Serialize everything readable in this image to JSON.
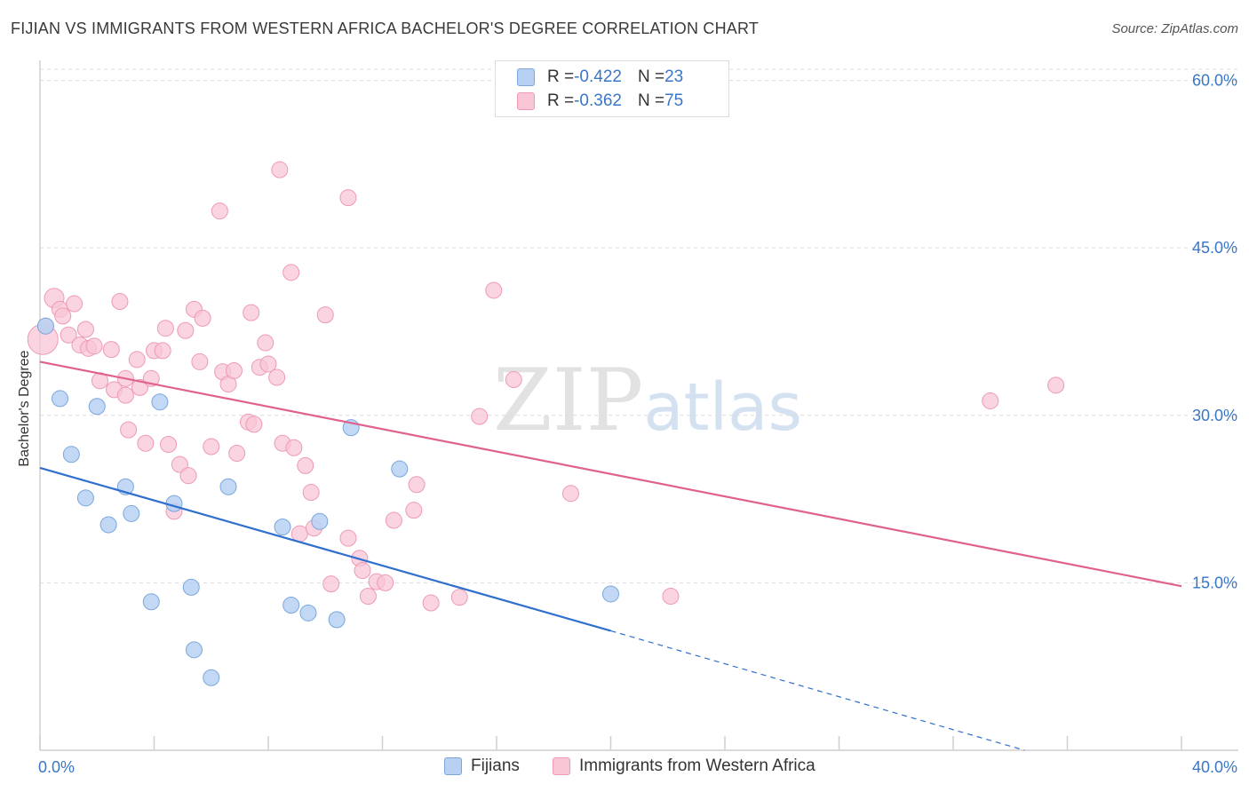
{
  "title": "FIJIAN VS IMMIGRANTS FROM WESTERN AFRICA BACHELOR'S DEGREE CORRELATION CHART",
  "source": "Source: ZipAtlas.com",
  "watermark": {
    "zip": "ZIP",
    "atlas": "atlas"
  },
  "legend_top": {
    "rows": [
      {
        "r_label": "R = ",
        "r_value": "-0.422",
        "n_label": "N = ",
        "n_value": "23"
      },
      {
        "r_label": "R = ",
        "r_value": "-0.362",
        "n_label": "N = ",
        "n_value": "75"
      }
    ]
  },
  "legend_bottom": {
    "series1": "Fijians",
    "series2": "Immigrants from Western Africa"
  },
  "colors": {
    "blue_fill": "#b8d1f3",
    "blue_stroke": "#7aa7dd",
    "blue_line": "#2f6fce",
    "pink_fill": "#f8c6d5",
    "pink_stroke": "#ee9ab5",
    "pink_line": "#e0628c",
    "tick_text": "#3a76c6",
    "grid": "#dcdcdc"
  },
  "chart_data": {
    "type": "scatter",
    "title": "FIJIAN VS IMMIGRANTS FROM WESTERN AFRICA BACHELOR'S DEGREE CORRELATION CHART",
    "xlabel": "",
    "ylabel": "Bachelor's Degree",
    "xlim": [
      0,
      40
    ],
    "ylim": [
      0,
      61
    ],
    "x_tick_labels": [
      "0.0%",
      "40.0%"
    ],
    "y_ticks": [
      15,
      30,
      45,
      60
    ],
    "y_tick_labels": [
      "15.0%",
      "30.0%",
      "45.0%",
      "60.0%"
    ],
    "grid": true,
    "legend_placement": "bottom",
    "series": [
      {
        "name": "Fijians",
        "color": "#b8d1f3",
        "points": [
          [
            0.2,
            38.0
          ],
          [
            0.7,
            31.5
          ],
          [
            1.1,
            26.5
          ],
          [
            1.6,
            22.6
          ],
          [
            2.0,
            30.8
          ],
          [
            2.4,
            20.2
          ],
          [
            3.0,
            23.6
          ],
          [
            3.2,
            21.2
          ],
          [
            3.9,
            13.3
          ],
          [
            4.2,
            31.2
          ],
          [
            4.7,
            22.1
          ],
          [
            5.3,
            14.6
          ],
          [
            5.4,
            9.0
          ],
          [
            6.0,
            6.5
          ],
          [
            6.6,
            23.6
          ],
          [
            8.5,
            20.0
          ],
          [
            8.8,
            13.0
          ],
          [
            9.4,
            12.3
          ],
          [
            9.8,
            20.5
          ],
          [
            10.4,
            11.7
          ],
          [
            10.9,
            28.9
          ],
          [
            12.6,
            25.2
          ],
          [
            20.0,
            14.0
          ]
        ],
        "trend": {
          "x0": 0,
          "y0": 25.3,
          "x1": 20.0,
          "y1": 10.7,
          "dashed_to_x": 34.5,
          "dashed_to_y": 0
        }
      },
      {
        "name": "Immigrants from Western Africa",
        "color": "#f8c6d5",
        "points": [
          [
            0.1,
            36.8
          ],
          [
            0.2,
            38.0
          ],
          [
            0.5,
            40.5
          ],
          [
            0.7,
            39.5
          ],
          [
            0.8,
            38.9
          ],
          [
            1.0,
            37.2
          ],
          [
            1.2,
            40.0
          ],
          [
            1.4,
            36.3
          ],
          [
            1.6,
            37.7
          ],
          [
            1.7,
            36.0
          ],
          [
            1.9,
            36.2
          ],
          [
            2.1,
            33.1
          ],
          [
            2.5,
            35.9
          ],
          [
            2.8,
            40.2
          ],
          [
            2.6,
            32.3
          ],
          [
            3.0,
            33.3
          ],
          [
            3.0,
            31.8
          ],
          [
            3.1,
            28.7
          ],
          [
            3.4,
            35.0
          ],
          [
            3.5,
            32.5
          ],
          [
            3.7,
            27.5
          ],
          [
            3.9,
            33.3
          ],
          [
            4.0,
            35.8
          ],
          [
            4.3,
            35.8
          ],
          [
            4.5,
            27.4
          ],
          [
            4.4,
            37.8
          ],
          [
            4.7,
            21.4
          ],
          [
            4.9,
            25.6
          ],
          [
            5.1,
            37.6
          ],
          [
            5.2,
            24.6
          ],
          [
            5.4,
            39.5
          ],
          [
            5.6,
            34.8
          ],
          [
            5.7,
            38.7
          ],
          [
            6.0,
            27.2
          ],
          [
            6.3,
            48.3
          ],
          [
            6.4,
            33.9
          ],
          [
            6.6,
            32.8
          ],
          [
            6.8,
            34.0
          ],
          [
            6.9,
            26.6
          ],
          [
            7.3,
            29.4
          ],
          [
            7.4,
            39.2
          ],
          [
            7.5,
            29.2
          ],
          [
            7.7,
            34.3
          ],
          [
            7.9,
            36.5
          ],
          [
            8.0,
            34.6
          ],
          [
            8.3,
            33.4
          ],
          [
            8.4,
            52.0
          ],
          [
            8.5,
            27.5
          ],
          [
            8.8,
            42.8
          ],
          [
            8.9,
            27.1
          ],
          [
            9.1,
            19.4
          ],
          [
            9.3,
            25.5
          ],
          [
            9.5,
            23.1
          ],
          [
            9.6,
            19.9
          ],
          [
            10.0,
            39.0
          ],
          [
            10.2,
            14.9
          ],
          [
            10.8,
            49.5
          ],
          [
            10.8,
            19.0
          ],
          [
            11.2,
            17.2
          ],
          [
            11.3,
            16.1
          ],
          [
            11.5,
            13.8
          ],
          [
            11.8,
            15.1
          ],
          [
            12.1,
            15.0
          ],
          [
            12.4,
            20.6
          ],
          [
            13.1,
            21.5
          ],
          [
            13.2,
            23.8
          ],
          [
            13.7,
            13.2
          ],
          [
            14.7,
            13.7
          ],
          [
            15.4,
            29.9
          ],
          [
            15.9,
            41.2
          ],
          [
            16.6,
            33.2
          ],
          [
            18.6,
            23.0
          ],
          [
            22.1,
            13.8
          ],
          [
            33.3,
            31.3
          ],
          [
            35.6,
            32.7
          ]
        ],
        "trend": {
          "x0": 0,
          "y0": 34.8,
          "x1": 40.0,
          "y1": 14.7
        }
      }
    ]
  }
}
